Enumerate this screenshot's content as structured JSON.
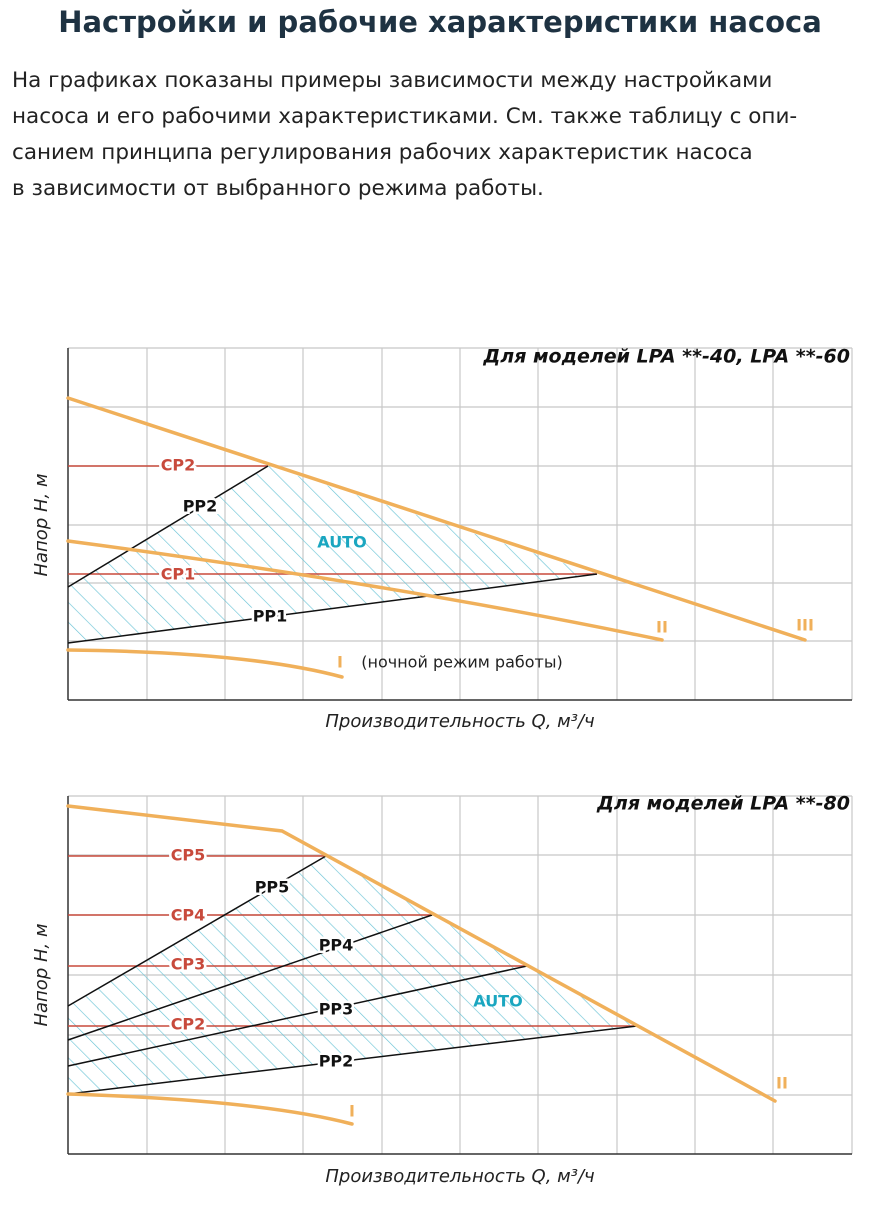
{
  "header": {
    "title": "Настройки и рабочие характеристики насоса",
    "paragraph": [
      "На графиках показаны примеры зависимости между настройками",
      "насоса и его рабочими характеристиками. См. также таблицу с опи-",
      "санием принципа регулирования рабочих характеристик насоса",
      "в зависимости от выбранного режима работы."
    ]
  },
  "diagrams": [
    {
      "caption": "Для моделей LPA **-40, LPA **-60",
      "y_label": "Напор H, м",
      "x_label": "Производительность Q, м³/ч",
      "labels": {
        "cp2": "CP2",
        "pp2": "PP2",
        "auto": "AUTO",
        "cp1": "CP1",
        "pp1": "PP1",
        "curve_2": "II",
        "curve_3": "III",
        "curve_1": "I",
        "night": "(ночной режим работы)"
      }
    },
    {
      "caption": "Для моделей LPA **-80",
      "y_label": "Напор H, м",
      "x_label": "Производительность Q, м³/ч",
      "labels": {
        "cp5": "CP5",
        "pp5": "PP5",
        "cp4": "CP4",
        "pp4": "PP4",
        "cp3": "CP3",
        "pp3": "PP3",
        "auto": "AUTO",
        "cp2": "CP2",
        "pp2": "PP2",
        "curve_2": "II",
        "curve_1": "I"
      }
    }
  ]
}
